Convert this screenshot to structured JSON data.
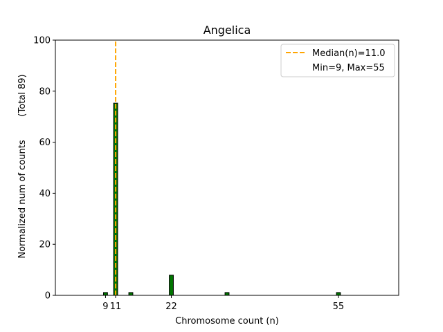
{
  "chart_data": {
    "type": "bar",
    "title": "Angelica",
    "xlabel": "Chromosome count (n)",
    "ylabel": "Normalized num of counts",
    "ylabel_secondary": "(Total 89)",
    "xlim": [
      -0.9,
      66.9
    ],
    "ylim": [
      0,
      100
    ],
    "xticks": [
      9,
      11,
      22,
      55
    ],
    "xtick_labels": [
      "9",
      "11",
      "22",
      "55"
    ],
    "yticks": [
      0,
      20,
      40,
      60,
      80,
      100
    ],
    "ytick_labels": [
      "0",
      "20",
      "40",
      "60",
      "80",
      "100"
    ],
    "bar_width": 0.8,
    "series": [
      {
        "x": [
          9,
          11,
          14,
          22,
          33,
          55
        ],
        "values": [
          1.1,
          75.3,
          1.1,
          7.9,
          1.1,
          1.1
        ]
      }
    ],
    "median": 11.0,
    "legend": {
      "position": "top-right",
      "entries": [
        "Median(n)=11.0",
        "Min=9, Max=55"
      ]
    },
    "grid": false,
    "colors": {
      "bar_fill": "#007500",
      "bar_edge": "#000000",
      "median_line": "#ffa500",
      "axis": "#000000"
    }
  }
}
